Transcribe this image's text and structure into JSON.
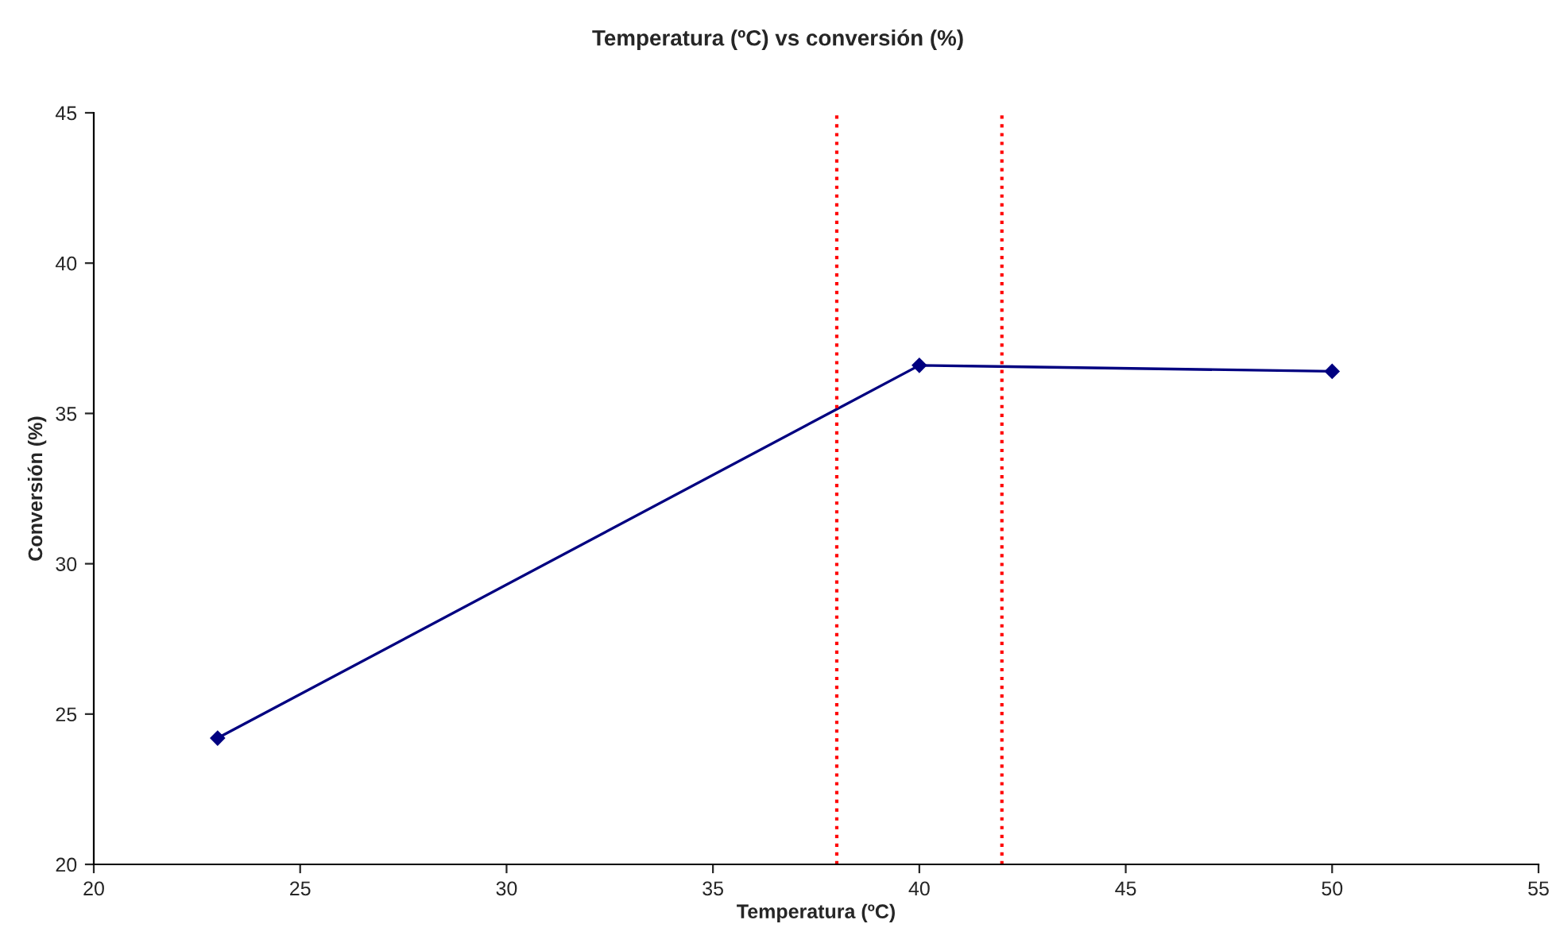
{
  "chart_data": {
    "type": "line",
    "title": "Temperatura (ºC) vs conversión (%)",
    "xlabel": "Temperatura (ºC)",
    "ylabel": "Conversión (%)",
    "x": [
      23,
      40,
      50
    ],
    "series": [
      {
        "color": "#000080",
        "values": [
          24.2,
          36.6,
          36.4
        ]
      }
    ],
    "xlim": [
      20,
      55
    ],
    "xticks": [
      20,
      25,
      30,
      35,
      40,
      45,
      50,
      55
    ],
    "ylim": [
      20,
      45
    ],
    "yticks": [
      20,
      25,
      30,
      35,
      40,
      45
    ],
    "marker": "diamond",
    "line_style": "solid",
    "grid": false,
    "legend": false,
    "ref_lines": [
      {
        "axis": "x",
        "value": 38,
        "color": "#ff0000",
        "line_style": "dotted"
      },
      {
        "axis": "x",
        "value": 42,
        "color": "#ff0000",
        "line_style": "dotted"
      }
    ]
  }
}
